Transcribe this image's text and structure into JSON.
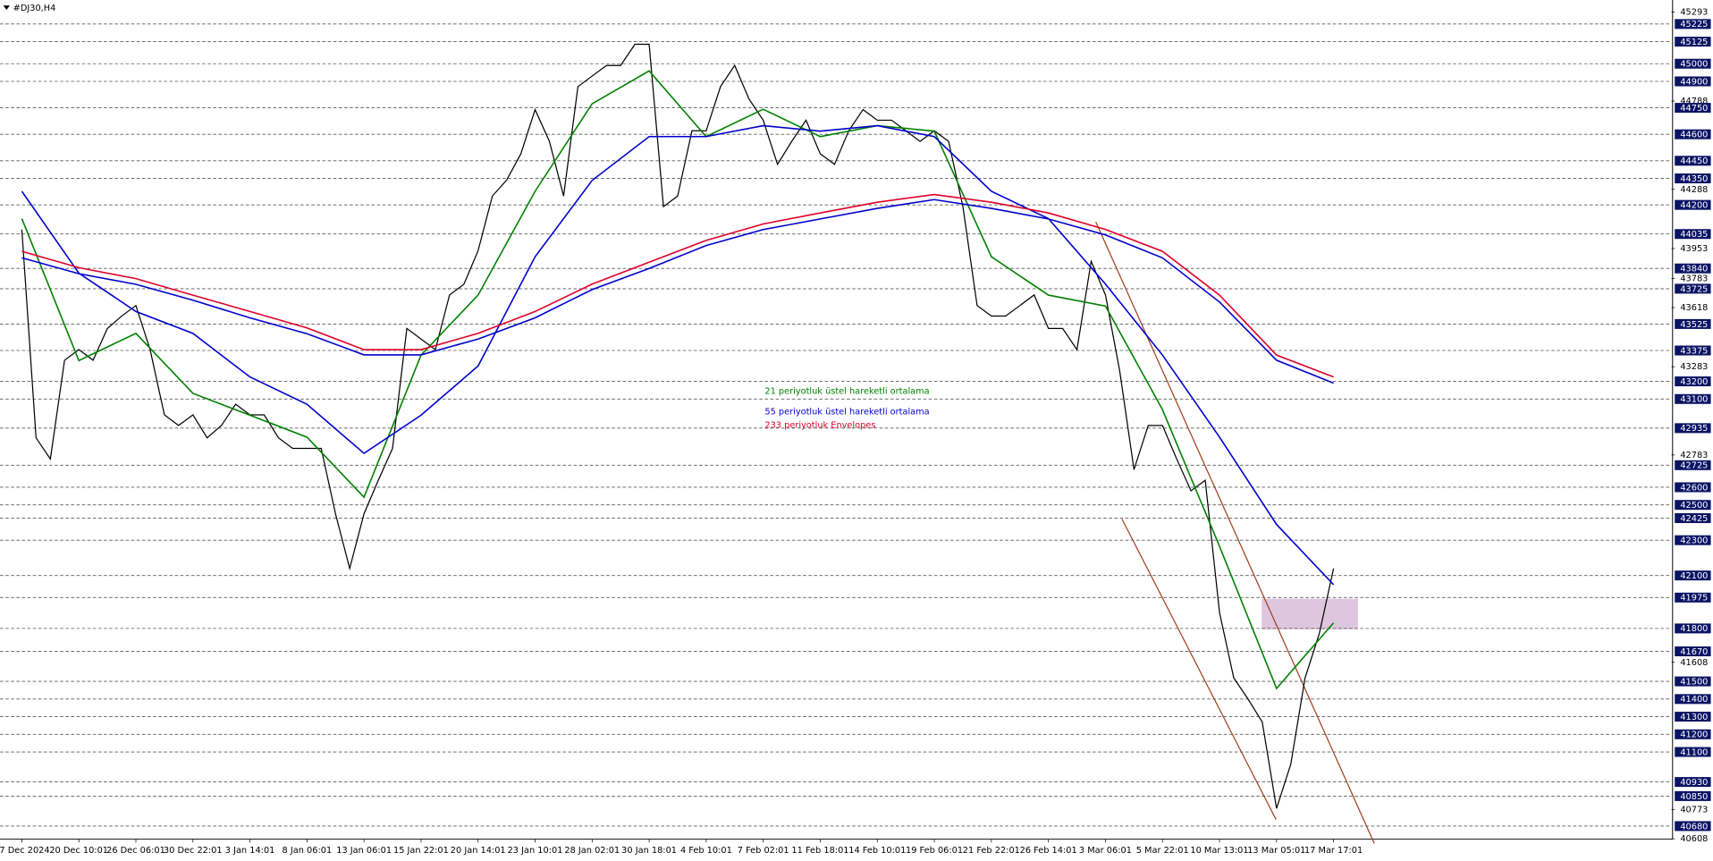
{
  "chart_data": {
    "type": "line",
    "title": "#DJ30,H4",
    "xlim": [
      -1.53,
      115.7
    ],
    "xticks": [
      {
        "value": 0,
        "label": "17 Dec 2024"
      },
      {
        "value": 4,
        "label": "20 Dec 10:01"
      },
      {
        "value": 8,
        "label": "26 Dec 06:01"
      },
      {
        "value": 12,
        "label": "30 Dec 22:01"
      },
      {
        "value": 16,
        "label": "3 Jan 14:01"
      },
      {
        "value": 20,
        "label": "8 Jan 06:01"
      },
      {
        "value": 24,
        "label": "13 Jan 06:01"
      },
      {
        "value": 28,
        "label": "15 Jan 22:01"
      },
      {
        "value": 32,
        "label": "20 Jan 14:01"
      },
      {
        "value": 36,
        "label": "23 Jan 10:01"
      },
      {
        "value": 40,
        "label": "28 Jan 02:01"
      },
      {
        "value": 44,
        "label": "30 Jan 18:01"
      },
      {
        "value": 48,
        "label": "4 Feb 10:01"
      },
      {
        "value": 52,
        "label": "7 Feb 02:01"
      },
      {
        "value": 56,
        "label": "11 Feb 18:01"
      },
      {
        "value": 60,
        "label": "14 Feb 10:01"
      },
      {
        "value": 64,
        "label": "19 Feb 06:01"
      },
      {
        "value": 68,
        "label": "21 Feb 22:01"
      },
      {
        "value": 72,
        "label": "26 Feb 14:01"
      },
      {
        "value": 76,
        "label": "3 Mar 06:01"
      },
      {
        "value": 80,
        "label": "5 Mar 22:01"
      },
      {
        "value": 84,
        "label": "10 Mar 13:01"
      },
      {
        "value": 88,
        "label": "13 Mar 05:01"
      },
      {
        "value": 92,
        "label": "17 Mar 17:01"
      }
    ],
    "ylim": [
      40606,
      45361
    ],
    "yticks": [
      45293,
      44788,
      44288,
      43953,
      43783,
      43618,
      43283,
      42783,
      41608,
      40773,
      40608
    ],
    "levels": [
      45225,
      45125,
      45000,
      44900,
      44750,
      44600,
      44450,
      44350,
      44200,
      44035,
      43840,
      43725,
      43525,
      43375,
      43200,
      43100,
      42935,
      42725,
      42600,
      42500,
      42425,
      42300,
      42100,
      41975,
      41800,
      41670,
      41500,
      41400,
      41300,
      41200,
      41100,
      40930,
      40850,
      40680
    ],
    "level_color": "#0a1464",
    "series": [
      {
        "color": "#000000",
        "values": [
          44060,
          42880,
          42760,
          43320,
          43380,
          43320,
          43500,
          43570,
          43630,
          43380,
          43010,
          42950,
          43010,
          42880,
          42950,
          43070,
          43010,
          43010,
          42880,
          42820,
          42820,
          42820,
          42450,
          42140,
          42450,
          42640,
          42820,
          43500,
          43440,
          43380,
          43690,
          43750,
          43940,
          44250,
          44340,
          44490,
          44740,
          44560,
          44250,
          44870,
          44930,
          44990,
          44990,
          45110,
          45110,
          44190,
          44250,
          44620,
          44620,
          44870,
          44990,
          44800,
          44680,
          44430,
          44560,
          44680,
          44490,
          44430,
          44620,
          44740,
          44680,
          44680,
          44620,
          44560,
          44620,
          44560,
          44190,
          43630,
          43570,
          43570,
          43630,
          43690,
          43500,
          43500,
          43380,
          43880,
          43690,
          43260,
          42700,
          42950,
          42950,
          42760,
          42580,
          42640,
          41890,
          41520,
          41400,
          41270,
          40780,
          41030,
          41520,
          41770,
          42140
        ]
      },
      {
        "name": "21 periyotluk üstel hareketli ortalama",
        "color": "#008000",
        "x": [
          0,
          4,
          8,
          12,
          16,
          20,
          24,
          28,
          32,
          36,
          40,
          44,
          48,
          52,
          56,
          60,
          64,
          68,
          72,
          76,
          80,
          84,
          88,
          92
        ],
        "values": [
          44122,
          43318,
          43472,
          43132,
          43008,
          42884,
          42544,
          43349,
          43689,
          44277,
          44773,
          44959,
          44587,
          44742,
          44587,
          44649,
          44618,
          43906,
          43689,
          43627,
          43039,
          42265,
          41460,
          41832
        ]
      },
      {
        "name": "55 periyotluk üstel hareketli ortalama",
        "color": "#0000cd",
        "x": [
          0,
          4,
          8,
          12,
          16,
          20,
          24,
          28,
          32,
          36,
          40,
          44,
          48,
          52,
          56,
          60,
          64,
          68,
          72,
          76,
          80,
          84,
          88,
          92
        ],
        "values": [
          44277,
          43813,
          43596,
          43472,
          43225,
          43070,
          42792,
          43008,
          43287,
          43906,
          44339,
          44587,
          44587,
          44649,
          44618,
          44649,
          44587,
          44277,
          44122,
          43751,
          43349,
          42884,
          42389,
          42048
        ]
      },
      {
        "name": "233 periyotluk Envelopes",
        "color": "#e0002a",
        "x": [
          0,
          4,
          8,
          12,
          16,
          20,
          24,
          28,
          32,
          36,
          40,
          44,
          48,
          52,
          56,
          60,
          64,
          68,
          72,
          76,
          80,
          84,
          88,
          92
        ],
        "values": [
          43937,
          43844,
          43782,
          43689,
          43596,
          43503,
          43380,
          43380,
          43472,
          43596,
          43751,
          43875,
          43999,
          44092,
          44154,
          44215,
          44259,
          44215,
          44154,
          44061,
          43937,
          43689,
          43349,
          43225
        ]
      },
      {
        "color": "#0000cd",
        "x": [
          0,
          4,
          8,
          12,
          16,
          20,
          24,
          28,
          32,
          36,
          40,
          44,
          48,
          52,
          56,
          60,
          64,
          68,
          72,
          76,
          80,
          84,
          88,
          92
        ],
        "values": [
          43900,
          43810,
          43750,
          43660,
          43560,
          43470,
          43350,
          43350,
          43440,
          43560,
          43720,
          43840,
          43970,
          44060,
          44120,
          44180,
          44230,
          44180,
          44120,
          44030,
          43900,
          43650,
          43320,
          43190
        ]
      }
    ]
  }
}
